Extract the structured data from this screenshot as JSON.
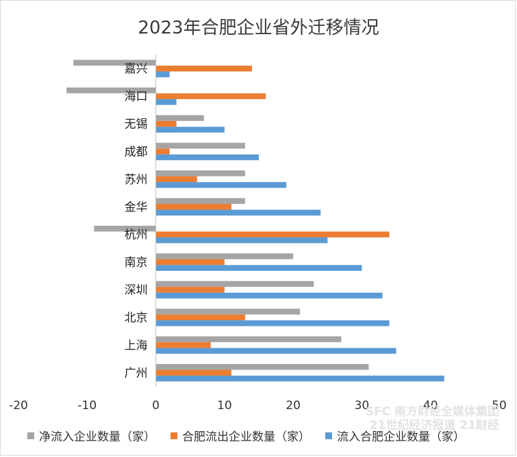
{
  "chart_data": {
    "type": "bar",
    "orientation": "horizontal",
    "title": "2023年合肥企业省外迁移情况",
    "categories": [
      "嘉兴",
      "海口",
      "无锡",
      "成都",
      "苏州",
      "金华",
      "杭州",
      "南京",
      "深圳",
      "北京",
      "上海",
      "广州"
    ],
    "series": [
      {
        "name": "净流入企业数量（家）",
        "color": "#a5a5a5",
        "values": [
          -12,
          -13,
          7,
          13,
          13,
          13,
          -9,
          20,
          23,
          21,
          27,
          31
        ]
      },
      {
        "name": "合肥流出企业数量（家）",
        "color": "#ed7d31",
        "values": [
          14,
          16,
          3,
          2,
          6,
          11,
          34,
          10,
          10,
          13,
          8,
          11
        ]
      },
      {
        "name": "流入合肥企业数量（家）",
        "color": "#5b9bd5",
        "values": [
          2,
          3,
          10,
          15,
          19,
          24,
          25,
          30,
          33,
          34,
          35,
          42
        ]
      }
    ],
    "xlim": [
      -20,
      50
    ],
    "xticks": [
      "-20",
      "-10",
      "0",
      "10",
      "20",
      "30",
      "40",
      "50"
    ],
    "grid": false,
    "legend_position": "bottom"
  },
  "watermark": {
    "line1": "SFC 南方财经全媒体集团",
    "line2": "21世纪经济报道 21财经"
  }
}
